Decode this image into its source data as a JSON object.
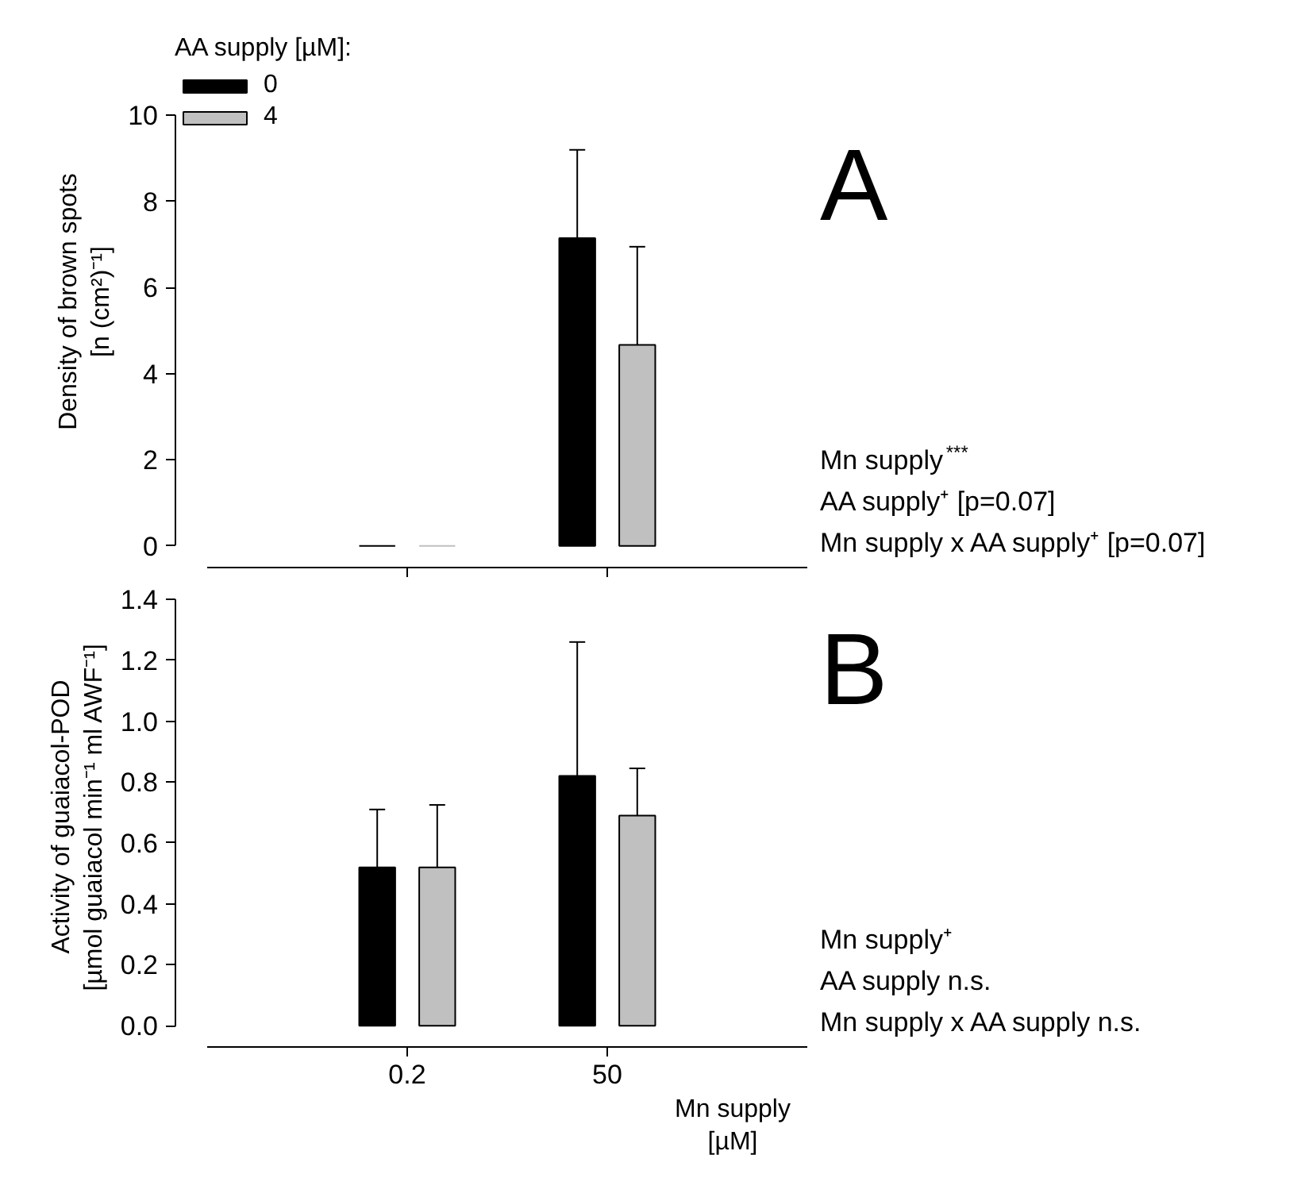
{
  "chart_data": [
    {
      "type": "bar",
      "categories": [
        "0.2",
        "50"
      ],
      "ylabel": "Density of brown spots\n[n (cm²)⁻¹]",
      "legend_title": "AA supply [µM]:",
      "legend": "top left",
      "tick_labels": "y",
      "grid": false,
      "ylim": [
        0,
        10
      ],
      "yticks": [
        0,
        2,
        4,
        6,
        8,
        10
      ],
      "series": [
        {
          "name": "0",
          "color": "#000000",
          "values": [
            0,
            7.15
          ],
          "errors": [
            null,
            [
              7.15,
              9.2
            ]
          ]
        },
        {
          "name": "4",
          "color": "#c0c0c0",
          "values": [
            0,
            4.67
          ],
          "errors": [
            null,
            [
              4.67,
              6.95
            ]
          ]
        }
      ],
      "annotations": [
        "A",
        "Mn supply$^{***}$",
        "AA supply⁺ [p=0.07]",
        "Mn supply x AA supply⁺ [p=0.07]"
      ]
    },
    {
      "type": "bar",
      "categories": [
        "0.2",
        "50"
      ],
      "ylabel": "Activity of guaiacol-POD\n[µmol guaiacol min⁻¹ ml AWF⁻¹]",
      "xlabel": "Mn supply\n[µM]",
      "grid": false,
      "ylim": [
        0,
        1.4
      ],
      "yticks": [
        {
          "value": 0,
          "label": "0.0"
        },
        0.2,
        0.4,
        0.6,
        0.8,
        {
          "value": 1,
          "label": "1.0"
        },
        1.2,
        1.4
      ],
      "series": [
        {
          "color": "#000000",
          "values": [
            0.52,
            0.82
          ],
          "errors": [
            [
              0.52,
              0.71
            ],
            [
              0.82,
              1.26
            ]
          ]
        },
        {
          "color": "#c0c0c0",
          "values": [
            0.52,
            0.69
          ],
          "errors": [
            [
              0.52,
              0.725
            ],
            [
              0.69,
              0.845
            ]
          ]
        }
      ],
      "annotations": [
        "B",
        "Mn supply⁺",
        "AA supply n.s.",
        "Mn supply x AA supply n.s."
      ]
    }
  ]
}
